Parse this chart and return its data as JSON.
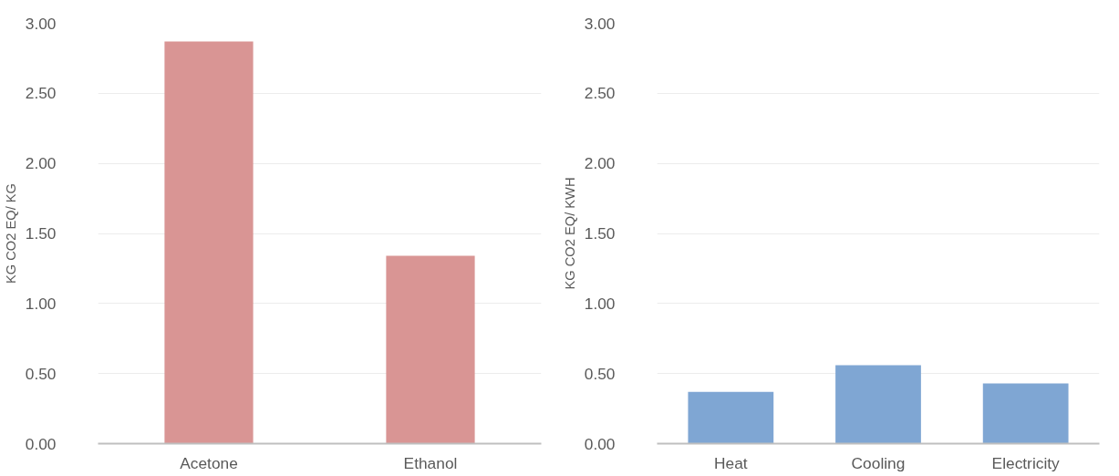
{
  "chart_data": [
    {
      "type": "bar",
      "ylabel": "KG CO2 EQ/ KG",
      "categories": [
        "Acetone",
        "Ethanol"
      ],
      "values": [
        2.87,
        1.34
      ],
      "color": "#d99594",
      "ylim": [
        0,
        3
      ],
      "yticks": [
        {
          "value": 0,
          "label": "0.00"
        },
        {
          "value": 0.5,
          "label": "0.50"
        },
        {
          "value": 1,
          "label": "1.00"
        },
        {
          "value": 1.5,
          "label": "1.50"
        },
        {
          "value": 2,
          "label": "2.00"
        },
        {
          "value": 2.5,
          "label": "2.50"
        },
        {
          "value": 3,
          "label": "3.00"
        }
      ],
      "grid": "y"
    },
    {
      "type": "bar",
      "ylabel": "KG CO2 EQ/ KWH",
      "categories": [
        "Heat",
        "Cooling",
        "Electricity"
      ],
      "values": [
        0.37,
        0.56,
        0.43
      ],
      "color": "#7fa6d3",
      "ylim": [
        0,
        3
      ],
      "yticks": [
        {
          "value": 0,
          "label": "0.00"
        },
        {
          "value": 0.5,
          "label": "0.50"
        },
        {
          "value": 1,
          "label": "1.00"
        },
        {
          "value": 1.5,
          "label": "1.50"
        },
        {
          "value": 2,
          "label": "2.00"
        },
        {
          "value": 2.5,
          "label": "2.50"
        },
        {
          "value": 3,
          "label": "3.00"
        }
      ],
      "grid": "y"
    }
  ]
}
